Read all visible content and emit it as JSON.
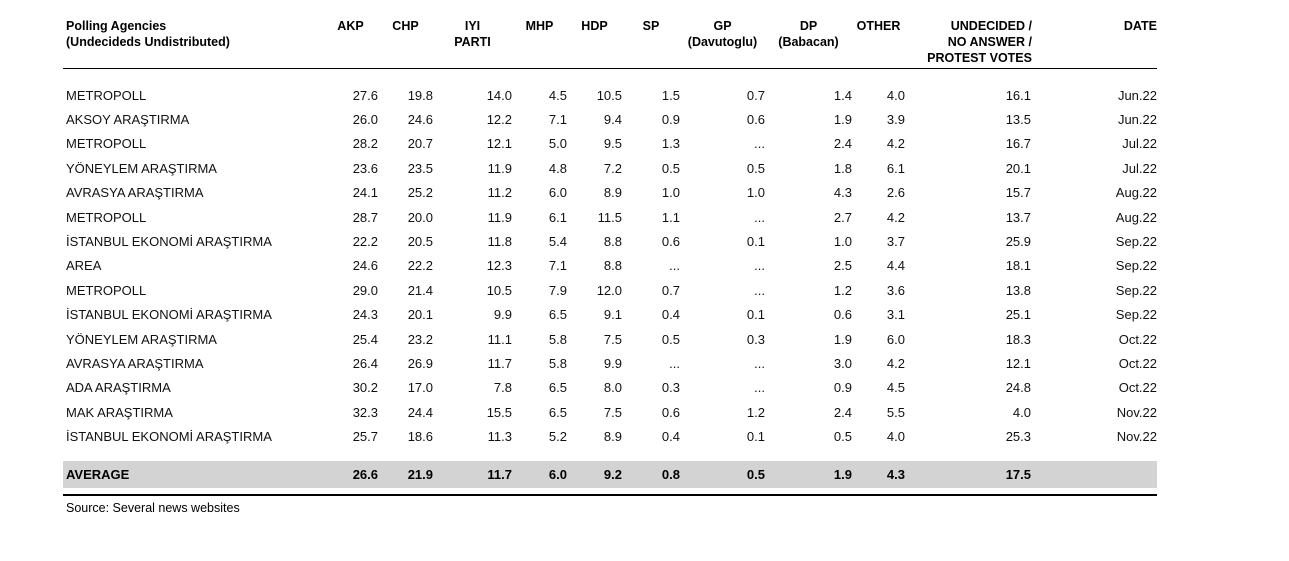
{
  "colors": {
    "average_row_bg": "#d3d3d3",
    "rule": "#000000",
    "text": "#000000",
    "background": "#ffffff"
  },
  "table": {
    "columns": [
      {
        "id": "agency",
        "lines": [
          "Polling Agencies",
          "(Undecideds Undistributed)"
        ]
      },
      {
        "id": "akp",
        "lines": [
          "AKP"
        ]
      },
      {
        "id": "chp",
        "lines": [
          "CHP"
        ]
      },
      {
        "id": "iyi",
        "lines": [
          "IYI",
          "PARTI"
        ]
      },
      {
        "id": "mhp",
        "lines": [
          "MHP"
        ]
      },
      {
        "id": "hdp",
        "lines": [
          "HDP"
        ]
      },
      {
        "id": "sp",
        "lines": [
          "SP"
        ]
      },
      {
        "id": "gp",
        "lines": [
          "GP",
          "(Davutoglu)"
        ]
      },
      {
        "id": "dp",
        "lines": [
          "DP",
          "(Babacan)"
        ]
      },
      {
        "id": "other",
        "lines": [
          "OTHER"
        ]
      },
      {
        "id": "undecided",
        "lines": [
          "UNDECIDED /",
          "NO ANSWER /",
          "PROTEST VOTES"
        ]
      },
      {
        "id": "date",
        "lines": [
          "DATE"
        ]
      }
    ],
    "rows": [
      {
        "agency": "METROPOLL",
        "values": [
          "27.6",
          "19.8",
          "14.0",
          "4.5",
          "10.5",
          "1.5",
          "0.7",
          "1.4",
          "4.0",
          "16.1"
        ],
        "date": "Jun.22"
      },
      {
        "agency": "AKSOY ARAŞTIRMA",
        "values": [
          "26.0",
          "24.6",
          "12.2",
          "7.1",
          "9.4",
          "0.9",
          "0.6",
          "1.9",
          "3.9",
          "13.5"
        ],
        "date": "Jun.22"
      },
      {
        "agency": "METROPOLL",
        "values": [
          "28.2",
          "20.7",
          "12.1",
          "5.0",
          "9.5",
          "1.3",
          "...",
          "2.4",
          "4.2",
          "16.7"
        ],
        "date": "Jul.22"
      },
      {
        "agency": "YÖNEYLEM ARAŞTIRMA",
        "values": [
          "23.6",
          "23.5",
          "11.9",
          "4.8",
          "7.2",
          "0.5",
          "0.5",
          "1.8",
          "6.1",
          "20.1"
        ],
        "date": "Jul.22"
      },
      {
        "agency": "AVRASYA ARAŞTIRMA",
        "values": [
          "24.1",
          "25.2",
          "11.2",
          "6.0",
          "8.9",
          "1.0",
          "1.0",
          "4.3",
          "2.6",
          "15.7"
        ],
        "date": "Aug.22"
      },
      {
        "agency": "METROPOLL",
        "values": [
          "28.7",
          "20.0",
          "11.9",
          "6.1",
          "11.5",
          "1.1",
          "...",
          "2.7",
          "4.2",
          "13.7"
        ],
        "date": "Aug.22"
      },
      {
        "agency": "İSTANBUL EKONOMİ ARAŞTIRMA",
        "values": [
          "22.2",
          "20.5",
          "11.8",
          "5.4",
          "8.8",
          "0.6",
          "0.1",
          "1.0",
          "3.7",
          "25.9"
        ],
        "date": "Sep.22"
      },
      {
        "agency": "AREA",
        "values": [
          "24.6",
          "22.2",
          "12.3",
          "7.1",
          "8.8",
          "...",
          "...",
          "2.5",
          "4.4",
          "18.1"
        ],
        "date": "Sep.22"
      },
      {
        "agency": "METROPOLL",
        "values": [
          "29.0",
          "21.4",
          "10.5",
          "7.9",
          "12.0",
          "0.7",
          "...",
          "1.2",
          "3.6",
          "13.8"
        ],
        "date": "Sep.22"
      },
      {
        "agency": "İSTANBUL EKONOMİ ARAŞTIRMA",
        "values": [
          "24.3",
          "20.1",
          "9.9",
          "6.5",
          "9.1",
          "0.4",
          "0.1",
          "0.6",
          "3.1",
          "25.1"
        ],
        "date": "Sep.22"
      },
      {
        "agency": "YÖNEYLEM ARAŞTIRMA",
        "values": [
          "25.4",
          "23.2",
          "11.1",
          "5.8",
          "7.5",
          "0.5",
          "0.3",
          "1.9",
          "6.0",
          "18.3"
        ],
        "date": "Oct.22"
      },
      {
        "agency": "AVRASYA ARAŞTIRMA",
        "values": [
          "26.4",
          "26.9",
          "11.7",
          "5.8",
          "9.9",
          "...",
          "...",
          "3.0",
          "4.2",
          "12.1"
        ],
        "date": "Oct.22"
      },
      {
        "agency": "ADA ARAŞTIRMA",
        "values": [
          "30.2",
          "17.0",
          "7.8",
          "6.5",
          "8.0",
          "0.3",
          "...",
          "0.9",
          "4.5",
          "24.8"
        ],
        "date": "Oct.22"
      },
      {
        "agency": "MAK ARAŞTIRMA",
        "values": [
          "32.3",
          "24.4",
          "15.5",
          "6.5",
          "7.5",
          "0.6",
          "1.2",
          "2.4",
          "5.5",
          "4.0"
        ],
        "date": "Nov.22"
      },
      {
        "agency": "İSTANBUL EKONOMİ ARAŞTIRMA",
        "values": [
          "25.7",
          "18.6",
          "11.3",
          "5.2",
          "8.9",
          "0.4",
          "0.1",
          "0.5",
          "4.0",
          "25.3"
        ],
        "date": "Nov.22"
      }
    ],
    "average": {
      "label": "AVERAGE",
      "values": [
        "26.6",
        "21.9",
        "11.7",
        "6.0",
        "9.2",
        "0.8",
        "0.5",
        "1.9",
        "4.3",
        "17.5"
      ],
      "date": ""
    }
  },
  "footer": {
    "source": "Source: Several news websites"
  }
}
